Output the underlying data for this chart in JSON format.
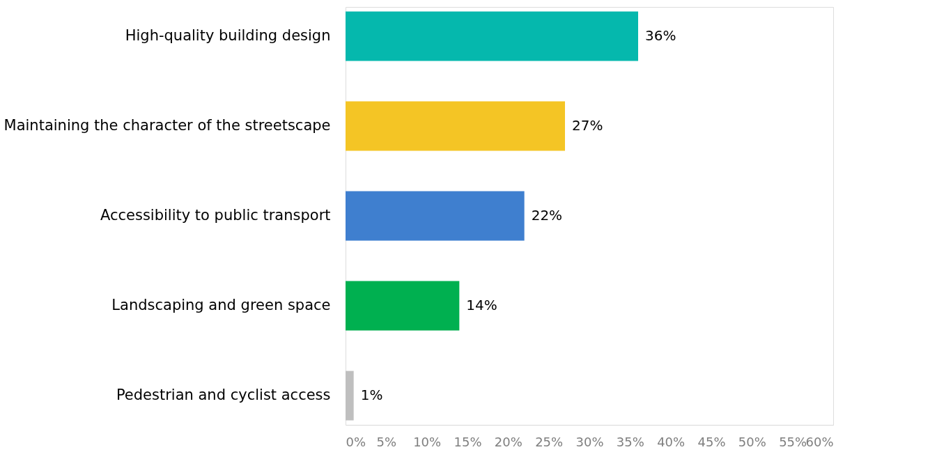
{
  "chart_data": {
    "type": "bar",
    "orientation": "horizontal",
    "categories": [
      "High-quality building design",
      "Maintaining the character of the streetscape",
      "Accessibility to public transport",
      "Landscaping and green space",
      "Pedestrian and cyclist access"
    ],
    "values": [
      36,
      27,
      22,
      14,
      1
    ],
    "colors": [
      "#05b8ad",
      "#f4c525",
      "#3f7fcf",
      "#00b050",
      "#bfbfbf"
    ],
    "value_labels": [
      "36%",
      "27%",
      "22%",
      "14%",
      "1%"
    ],
    "xlim": [
      0,
      60
    ],
    "xticks": [
      {
        "value": 0,
        "label": "0%"
      },
      {
        "value": 5,
        "label": "5%"
      },
      {
        "value": 10,
        "label": "10%"
      },
      {
        "value": 15,
        "label": "15%"
      },
      {
        "value": 20,
        "label": "20%"
      },
      {
        "value": 25,
        "label": "25%"
      },
      {
        "value": 30,
        "label": "30%"
      },
      {
        "value": 35,
        "label": "35%"
      },
      {
        "value": 40,
        "label": "40%"
      },
      {
        "value": 45,
        "label": "45%"
      },
      {
        "value": 50,
        "label": "50%"
      },
      {
        "value": 55,
        "label": "55%"
      },
      {
        "value": 60,
        "label": "60%"
      }
    ],
    "grid": false
  }
}
